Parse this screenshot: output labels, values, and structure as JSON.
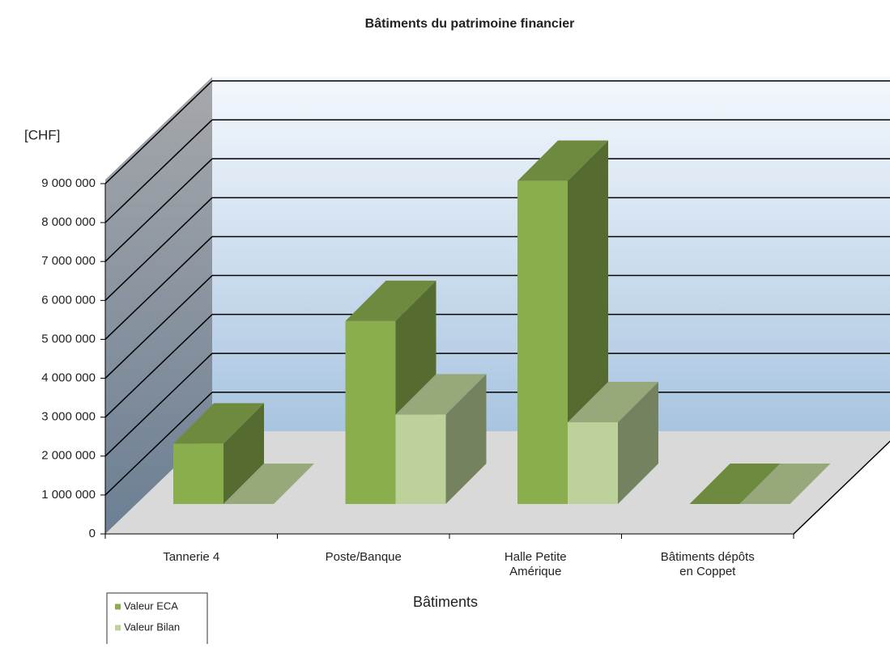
{
  "chart_data": {
    "type": "bar3d",
    "title": "Bâtiments du patrimoine financier",
    "y_label": "[CHF]",
    "x_label": "Bâtiments",
    "categories": [
      "Tannerie 4",
      "Poste/Banque",
      "Halle Petite\nAmérique",
      "Bâtiments dépôts\nen Coppet"
    ],
    "series": [
      {
        "name": "Valeur ECA",
        "color": "#8aad4e",
        "values": [
          1550000,
          4700000,
          8300000,
          0
        ]
      },
      {
        "name": "Valeur Bilan",
        "color": "#bdd29a",
        "values": [
          0,
          2300000,
          2100000,
          0
        ]
      }
    ],
    "ylim": [
      0,
      9000000
    ],
    "yticks": [
      0,
      {
        "value": 1000000,
        "label": "1 000 000"
      },
      {
        "value": 2000000,
        "label": "2 000 000"
      },
      {
        "value": 3000000,
        "label": "3 000 000"
      },
      {
        "value": 4000000,
        "label": "4 000 000"
      },
      {
        "value": 5000000,
        "label": "5 000 000"
      },
      {
        "value": 6000000,
        "label": "6 000 000"
      },
      {
        "value": 7000000,
        "label": "7 000 000"
      },
      {
        "value": 8000000,
        "label": "8 000 000"
      },
      {
        "value": 9000000,
        "label": "9 000 000"
      }
    ],
    "grid": true
  }
}
